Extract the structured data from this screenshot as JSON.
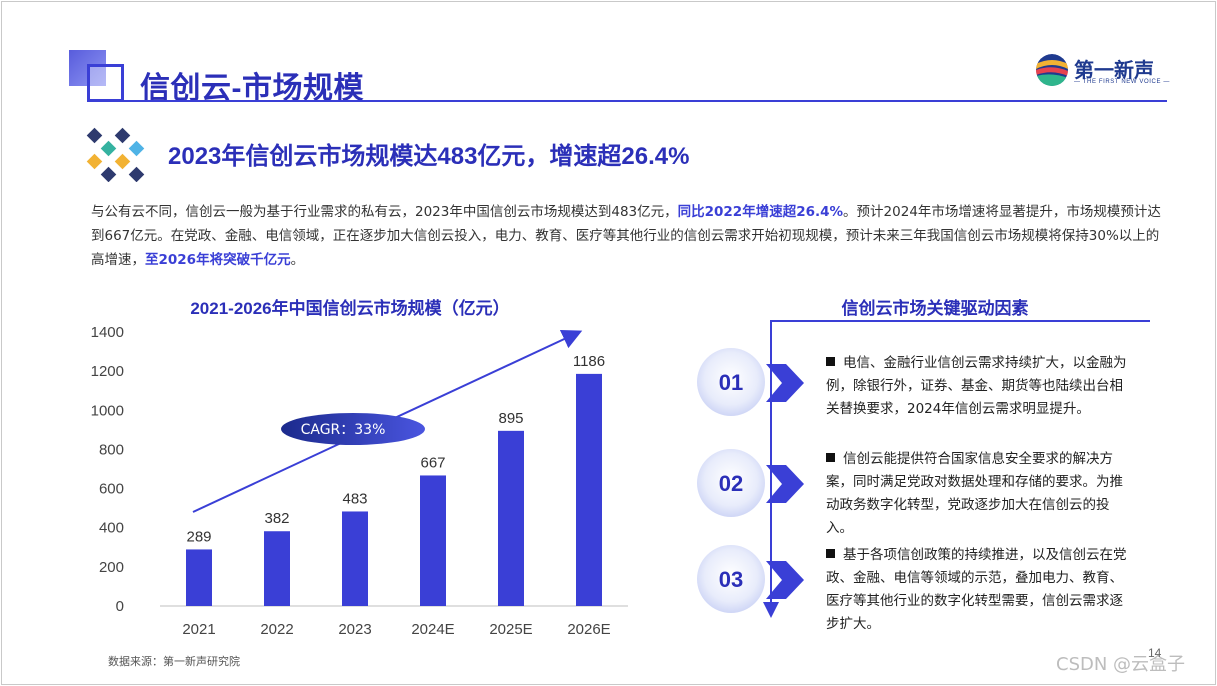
{
  "header": {
    "title": "信创云-市场规模",
    "logo_text": "第一新声",
    "logo_subtext": "— THE FIRST NEW VOICE —"
  },
  "headline": "2023年信创云市场规模达483亿元，增速超26.4%",
  "paragraph": {
    "part1": "与公有云不同，信创云一般为基于行业需求的私有云，2023年中国信创云市场规模达到483亿元，",
    "highlight1": "同比2022年增速超26.4%",
    "part2": "。预计2024年市场增速将显著提升，市场规模预计达到667亿元。在党政、金融、电信领域，正在逐步加大信创云投入，电力、教育、医疗等其他行业的信创云需求开始初现规模，预计未来三年我国信创云市场规模将保持30%以上的高增速，",
    "highlight2": "至2026年将突破千亿元",
    "part3": "。"
  },
  "chart_data": {
    "type": "bar",
    "title": "2021-2026年中国信创云市场规模（亿元）",
    "categories": [
      "2021",
      "2022",
      "2023",
      "2024E",
      "2025E",
      "2026E"
    ],
    "values": [
      289,
      382,
      483,
      667,
      895,
      1186
    ],
    "ylim": [
      0,
      1400
    ],
    "yticks": [
      0,
      200,
      400,
      600,
      800,
      1000,
      1200,
      1400
    ],
    "annotation": "CAGR：33%",
    "bar_color": "#3a3fd6",
    "xlabel": "",
    "ylabel": "",
    "grid": false
  },
  "source": "数据来源：第一新声研究院",
  "drivers": {
    "title": "信创云市场关键驱动因素",
    "items": [
      {
        "num": "01",
        "text": "电信、金融行业信创云需求持续扩大，以金融为例，除银行外，证券、基金、期货等也陆续出台相关替换要求，2024年信创云需求明显提升。"
      },
      {
        "num": "02",
        "text": "信创云能提供符合国家信息安全要求的解决方案，同时满足党政对数据处理和存储的要求。为推动政务数字化转型，党政逐步加大在信创云的投入。"
      },
      {
        "num": "03",
        "text": "基于各项信创政策的持续推进，以及信创云在党政、金融、电信等领域的示范，叠加电力、教育、医疗等其他行业的数字化转型需要，信创云需求逐步扩大。"
      }
    ]
  },
  "page_number": "14",
  "watermark": "CSDN @云盒子",
  "colors": {
    "accent": "#3a3fd6",
    "title": "#2b2fb8"
  }
}
